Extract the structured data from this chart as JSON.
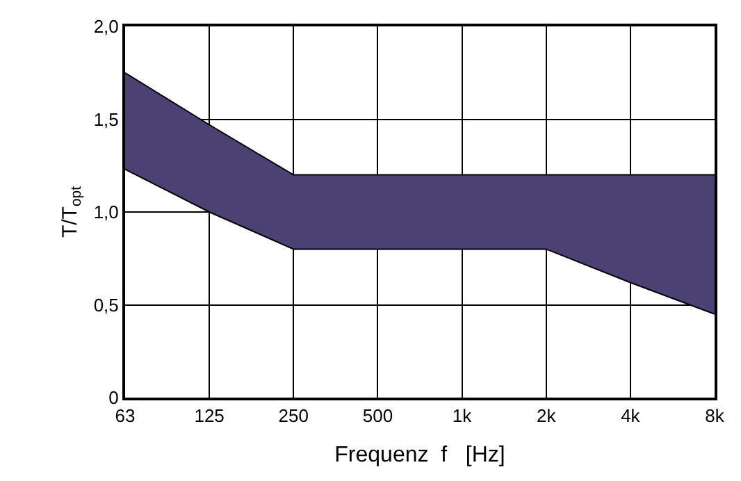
{
  "chart_data": {
    "type": "area",
    "xlabel": "Frequenz  f   [Hz]",
    "ylabel": "T/T$_{opt}$",
    "categories": [
      "63",
      "125",
      "250",
      "500",
      "1k",
      "2k",
      "4k",
      "8k"
    ],
    "series": [
      {
        "type": "line",
        "color": "#000000",
        "values": [
          1.23,
          1.0,
          0.8,
          0.8,
          0.8,
          0.8,
          0.62,
          0.45
        ]
      },
      {
        "color": "#4b4172",
        "values": [
          1.75,
          1.47,
          1.2,
          1.2,
          1.2,
          1.2,
          1.2,
          1.2
        ]
      }
    ],
    "ylim": [
      0,
      2.0
    ],
    "yticks": [
      0,
      {
        "value": 0.5,
        "label": "0,5"
      },
      {
        "value": 1.0,
        "label": "1,0"
      },
      {
        "value": 1.5,
        "label": "1,5"
      },
      {
        "value": 2.0,
        "label": "2,0"
      }
    ],
    "grid": true
  }
}
